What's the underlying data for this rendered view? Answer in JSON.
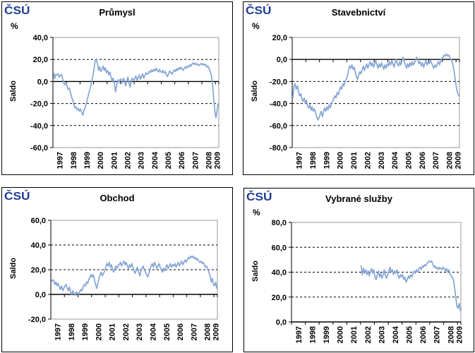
{
  "logo": {
    "text": "ČSÚ",
    "color": "#1E3A96"
  },
  "chart_data": [
    {
      "type": "line",
      "title": "Průmysl",
      "unit_label": "%",
      "y_axis_title": "Saldo",
      "frequency": "monthly",
      "x_range": "Jan 1997 - Mar 2009",
      "x_tick_years": [
        "1997",
        "1998",
        "1999",
        "2000",
        "2001",
        "2002",
        "2003",
        "2004",
        "2005",
        "2006",
        "2007",
        "2008",
        "2009"
      ],
      "ylim": [
        -60,
        40
      ],
      "y_tick_step": 20,
      "y_tick_labels": [
        "40,0",
        "20,0",
        "0,0",
        "-20,0",
        "-40,0",
        "-60,0"
      ],
      "grid": "horizontal dashed every 20, solid axis at 0",
      "legend": "none",
      "line_color": "#84A5D6",
      "values": [
        8,
        2.5,
        6.5,
        6,
        7,
        4,
        5.5,
        6.5,
        3,
        -1,
        -3,
        -1.5,
        -4,
        -7,
        -6,
        -10,
        -14,
        -17,
        -21,
        -24,
        -23,
        -26,
        -24.5,
        -27,
        -25,
        -28,
        -30.5,
        -26,
        -24,
        -20,
        -16,
        -12,
        -8,
        -4,
        1,
        6,
        12,
        19.5,
        20.5,
        16,
        10,
        13.5,
        9,
        11,
        14,
        10,
        12.5,
        8,
        10,
        6,
        8.5,
        4,
        0,
        3,
        -2,
        -9.5,
        -3,
        1.5,
        -1,
        2,
        2,
        -1.5,
        3,
        0,
        -4,
        1,
        4,
        -2,
        -5,
        1.5,
        3,
        0.5,
        2.5,
        5,
        1,
        3.5,
        6,
        2,
        4.5,
        7,
        3,
        5.5,
        8,
        6.5,
        7,
        9.5,
        8,
        10.5,
        9,
        11,
        9.5,
        12,
        10,
        8.5,
        11,
        9,
        8,
        10,
        7.5,
        9,
        6,
        4.5,
        7,
        9.5,
        8,
        6.5,
        9,
        10.5,
        9,
        11.5,
        10,
        12.5,
        11,
        13,
        11.5,
        10,
        12,
        13.5,
        12,
        14,
        13,
        15.5,
        14,
        16,
        17,
        15.5,
        16.5,
        15,
        16,
        14.5,
        15.5,
        16.5,
        15,
        16,
        14.5,
        15.5,
        13,
        14,
        11.5,
        9,
        5,
        -3,
        -15,
        -27,
        -33,
        -26,
        -20
      ]
    },
    {
      "type": "line",
      "title": "Stavebnictví",
      "unit_label": "%",
      "y_axis_title": "Saldo",
      "frequency": "monthly",
      "x_range": "Jan 1997 - Mar 2009",
      "x_tick_years": [
        "1997",
        "1998",
        "1999",
        "2000",
        "2001",
        "2002",
        "2003",
        "2004",
        "2005",
        "2006",
        "2007",
        "2008",
        "2009"
      ],
      "ylim": [
        -80,
        20
      ],
      "y_tick_step": 20,
      "y_tick_labels": [
        "20,0",
        "0,0",
        "-20,0",
        "-40,0",
        "-60,0",
        "-80,0"
      ],
      "grid": "horizontal dashed every 20, solid axis at 0",
      "legend": "none",
      "line_color": "#84A5D6",
      "values": [
        -35,
        -25,
        -22,
        -27,
        -24,
        -29,
        -33,
        -31,
        -36,
        -38,
        -35,
        -40,
        -37,
        -42,
        -44,
        -41,
        -46,
        -43,
        -47,
        -45,
        -48,
        -52,
        -55,
        -53,
        -50,
        -47,
        -52,
        -48,
        -44,
        -47,
        -43,
        -46,
        -41,
        -44,
        -40,
        -38,
        -36,
        -33,
        -35,
        -30,
        -32,
        -28,
        -25,
        -27,
        -22,
        -24,
        -20,
        -18,
        -15,
        -10,
        -6,
        -8,
        -5,
        -9,
        -7,
        -12,
        -16,
        -18,
        -14,
        -11,
        -13,
        -9,
        -6,
        -10,
        -7,
        -4,
        -8,
        -5,
        -2,
        -6,
        -3,
        -7,
        -4,
        -1,
        -5,
        -8,
        -4,
        -7,
        -3,
        -6,
        -9,
        -5,
        -8,
        -4,
        -6,
        -2,
        -5,
        -1,
        -4,
        -7,
        -3,
        0,
        -4,
        -6,
        -2,
        -5,
        -1,
        2,
        -2,
        -5,
        -8,
        -4,
        -7,
        -3,
        -6,
        -2,
        -5,
        -3,
        0,
        2,
        -1,
        -4,
        -2,
        -6,
        -3,
        -7,
        -4,
        -1,
        -5,
        -2,
        -4,
        -1,
        -3,
        -6,
        -8,
        -5,
        -7,
        -4,
        -2,
        -5,
        -1,
        1,
        2,
        4,
        3,
        5,
        3,
        4,
        2,
        0,
        -2,
        -6,
        -12,
        -20,
        -27,
        -31,
        -33
      ]
    },
    {
      "type": "line",
      "title": "Obchod",
      "unit_label": "",
      "y_axis_title": "Saldo",
      "frequency": "monthly",
      "x_range": "Jan 1997 - Mar 2009",
      "x_tick_years": [
        "1997",
        "1998",
        "1999",
        "2000",
        "2001",
        "2002",
        "2003",
        "2004",
        "2005",
        "2006",
        "2007",
        "2008",
        "2009"
      ],
      "ylim": [
        -20,
        60
      ],
      "y_tick_step": 20,
      "y_tick_labels": [
        "60,0",
        "40,0",
        "20,0",
        "0,0",
        "-20,0"
      ],
      "grid": "horizontal dashed every 20, solid axis at 0",
      "legend": "none",
      "line_color": "#84A5D6",
      "values": [
        10,
        12,
        11,
        8,
        10,
        7,
        9,
        6,
        4,
        7,
        3,
        5,
        7,
        8,
        5,
        3,
        6,
        2,
        0,
        3,
        1,
        -1,
        2,
        1,
        0,
        2,
        4,
        3,
        6,
        8,
        7,
        10,
        9,
        12,
        14,
        16,
        14,
        16,
        12,
        8,
        5,
        9,
        13,
        16,
        18,
        15,
        17,
        19,
        22,
        25,
        23,
        26,
        22,
        24,
        20,
        18,
        21,
        23,
        21,
        24,
        24,
        26,
        23,
        25,
        27,
        24,
        26,
        23,
        21,
        24,
        22,
        25,
        22,
        19,
        17,
        20,
        22,
        18,
        15,
        19,
        21,
        23,
        20,
        18,
        16,
        14,
        17,
        20,
        23,
        25,
        22,
        26,
        24,
        21,
        23,
        25,
        22,
        20,
        18,
        21,
        19,
        22,
        24,
        21,
        23,
        25,
        22,
        24,
        23,
        25,
        22,
        24,
        26,
        23,
        25,
        27,
        24,
        26,
        28,
        26,
        28,
        30,
        29,
        31,
        30,
        31,
        29,
        30,
        28,
        29,
        27,
        26,
        27,
        25,
        26,
        24,
        22,
        23,
        20,
        18,
        15,
        10,
        13,
        8,
        7,
        10,
        5
      ]
    },
    {
      "type": "line",
      "title": "Vybrané služby",
      "unit_label": "%",
      "y_axis_title": "Saldo",
      "frequency": "monthly",
      "x_range": "Jan 2002 - Mar 2009 (axis starts 1997)",
      "x_tick_years": [
        "1997",
        "1998",
        "1999",
        "2000",
        "2001",
        "2002",
        "2003",
        "2004",
        "2005",
        "2006",
        "2007",
        "2008",
        "2009"
      ],
      "ylim": [
        0,
        80
      ],
      "y_tick_step": 20,
      "y_tick_labels": [
        "80,0",
        "60,0",
        "40,0",
        "20,0",
        "0,0"
      ],
      "grid": "horizontal dashed every 20, solid axis at 0 (bottom)",
      "legend": "none",
      "line_color": "#84A5D6",
      "values": [
        null,
        null,
        null,
        null,
        null,
        null,
        null,
        null,
        null,
        null,
        null,
        null,
        null,
        null,
        null,
        null,
        null,
        null,
        null,
        null,
        null,
        null,
        null,
        null,
        null,
        null,
        null,
        null,
        null,
        null,
        null,
        null,
        null,
        null,
        null,
        null,
        null,
        null,
        null,
        null,
        null,
        null,
        null,
        null,
        null,
        null,
        null,
        null,
        null,
        null,
        null,
        null,
        null,
        null,
        null,
        null,
        null,
        null,
        null,
        null,
        45,
        38,
        43,
        39,
        42,
        38,
        41,
        37,
        40,
        43,
        39,
        42,
        36,
        34,
        38,
        41,
        36,
        39,
        35,
        38,
        42,
        37,
        35,
        38,
        41,
        44,
        40,
        42,
        38,
        41,
        39,
        42,
        37,
        35,
        38,
        36,
        38,
        34,
        36,
        32,
        34,
        37,
        35,
        38,
        36,
        39,
        41,
        39,
        42,
        40,
        43,
        44,
        42,
        45,
        44,
        46,
        45,
        47,
        48,
        49,
        48,
        49,
        47,
        44,
        45,
        43,
        44,
        42,
        44,
        43,
        42,
        44,
        43,
        41,
        43,
        40,
        42,
        39,
        37,
        36,
        34,
        28,
        20,
        13,
        11,
        15,
        9
      ]
    }
  ]
}
